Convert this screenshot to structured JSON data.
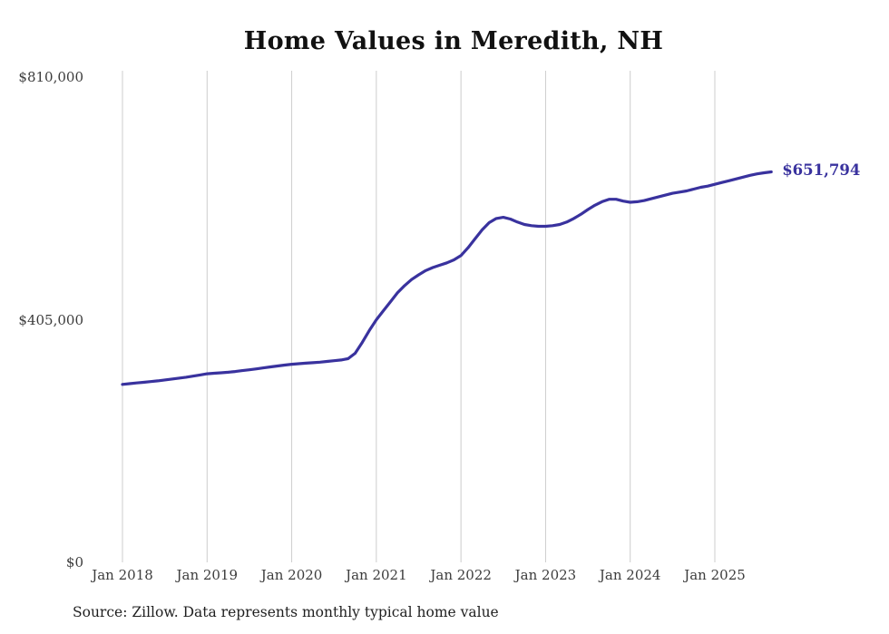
{
  "source_note": "Source: Zillow. Data represents monthly typical home value",
  "colors": {
    "line": "#39329e",
    "grid": "#cccccc",
    "axis_text": "#3c3c3c",
    "title_text": "#111111"
  },
  "chart_data": {
    "type": "line",
    "title": "Home Values in Meredith, NH",
    "xlabel": "",
    "ylabel": "",
    "ylim": [
      0,
      810000
    ],
    "grid": "vertical-only",
    "legend": "none",
    "latest_label": "$651,794",
    "latest_value": 651794,
    "ytick_labels": [
      "$810,000",
      "$405,000",
      "$0"
    ],
    "ytick_values": [
      810000,
      405000,
      0
    ],
    "xticklabels": [
      "Jan 2018",
      "Jan 2019",
      "Jan 2020",
      "Jan 2021",
      "Jan 2022",
      "Jan 2023",
      "Jan 2024",
      "Jan 2025"
    ],
    "x": [
      "2018-01",
      "2018-02",
      "2018-03",
      "2018-04",
      "2018-05",
      "2018-06",
      "2018-07",
      "2018-08",
      "2018-09",
      "2018-10",
      "2018-11",
      "2018-12",
      "2019-01",
      "2019-02",
      "2019-03",
      "2019-04",
      "2019-05",
      "2019-06",
      "2019-07",
      "2019-08",
      "2019-09",
      "2019-10",
      "2019-11",
      "2019-12",
      "2020-01",
      "2020-02",
      "2020-03",
      "2020-04",
      "2020-05",
      "2020-06",
      "2020-07",
      "2020-08",
      "2020-09",
      "2020-10",
      "2020-11",
      "2020-12",
      "2021-01",
      "2021-02",
      "2021-03",
      "2021-04",
      "2021-05",
      "2021-06",
      "2021-07",
      "2021-08",
      "2021-09",
      "2021-10",
      "2021-11",
      "2021-12",
      "2022-01",
      "2022-02",
      "2022-03",
      "2022-04",
      "2022-05",
      "2022-06",
      "2022-07",
      "2022-08",
      "2022-09",
      "2022-10",
      "2022-11",
      "2022-12",
      "2023-01",
      "2023-02",
      "2023-03",
      "2023-04",
      "2023-05",
      "2023-06",
      "2023-07",
      "2023-08",
      "2023-09",
      "2023-10",
      "2023-11",
      "2023-12",
      "2024-01",
      "2024-02",
      "2024-03",
      "2024-04",
      "2024-05",
      "2024-06",
      "2024-07",
      "2024-08",
      "2024-09",
      "2024-10",
      "2024-11",
      "2024-12",
      "2025-01",
      "2025-02",
      "2025-03",
      "2025-04",
      "2025-05",
      "2025-06",
      "2025-07",
      "2025-08",
      "2025-09"
    ],
    "values": [
      297000,
      298200,
      299400,
      300600,
      301800,
      303000,
      304500,
      306000,
      307500,
      309000,
      310800,
      312800,
      314800,
      315600,
      316400,
      317400,
      318600,
      320000,
      321500,
      323000,
      324600,
      326200,
      327800,
      329300,
      330600,
      331600,
      332500,
      333300,
      334200,
      335300,
      336500,
      337800,
      340000,
      349000,
      367000,
      387000,
      405000,
      420000,
      435000,
      450000,
      462000,
      472000,
      480000,
      487000,
      492000,
      496000,
      500000,
      505000,
      512000,
      525000,
      540000,
      555000,
      567000,
      574000,
      576000,
      573000,
      568000,
      564000,
      562000,
      561000,
      561000,
      562000,
      564000,
      568000,
      574000,
      581000,
      589000,
      596000,
      602000,
      606000,
      606000,
      603000,
      601000,
      602000,
      604000,
      607000,
      610000,
      613000,
      616000,
      618000,
      620000,
      623000,
      626000,
      628000,
      631000,
      634000,
      637000,
      640000,
      643000,
      646000,
      648500,
      650200,
      651794
    ]
  }
}
